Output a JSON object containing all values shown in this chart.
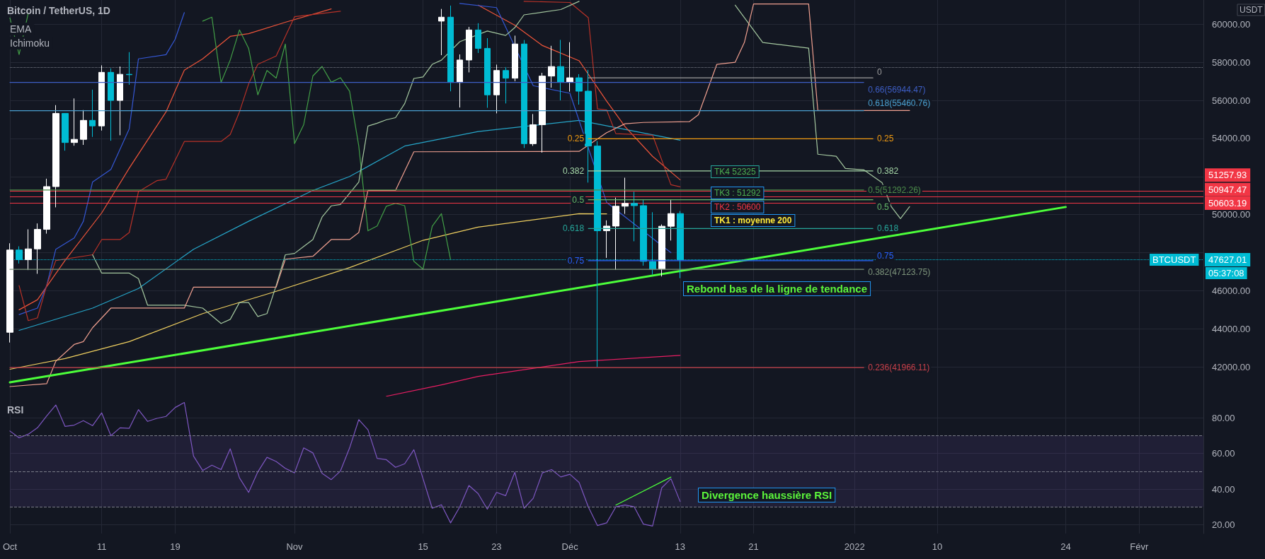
{
  "chart_data": [
    {
      "type": "candlestick",
      "title": "Bitcoin / TetherUS, 1D",
      "ylabel": "USDT",
      "annotations": [
        "EMA",
        "Ichimoku",
        "TK4 52325",
        "TK3 : 51292",
        "TK2 : 50600",
        "TK1 : moyenne 200",
        "Rebond bas de la ligne de tendance",
        "BTCUSDT",
        "05:37:08"
      ],
      "xlim": [
        "2021-10-01",
        "2022-02-08"
      ],
      "xticks": [
        {
          "value": "2021-10-01",
          "label": null
        },
        {
          "value": "2021-10-11",
          "label": null
        },
        {
          "value": "2021-10-19",
          "label": null
        },
        {
          "value": "2021-11-01",
          "label": null
        },
        {
          "value": "2021-11-15",
          "label": null
        },
        {
          "value": "2021-11-23",
          "label": null
        },
        {
          "value": "2021-12-01",
          "label": null
        },
        {
          "value": "2021-12-13",
          "label": null
        },
        {
          "value": "2021-12-21",
          "label": null
        },
        {
          "value": "2022-01-01",
          "label": null
        },
        {
          "value": "2022-01-10",
          "label": null
        },
        {
          "value": "2022-01-24",
          "label": null
        },
        {
          "value": "2022-02-01",
          "label": null
        }
      ],
      "ylim": [
        40450,
        61270
      ],
      "yticks": [
        {
          "value": 42000,
          "label": "42000.00"
        },
        {
          "value": 44000,
          "label": "44000.00"
        },
        {
          "value": 46000,
          "label": "46000.00"
        },
        {
          "value": 48000,
          "label": null
        },
        {
          "value": 50000,
          "label": "50000.00"
        },
        {
          "value": 52000,
          "label": null
        },
        {
          "value": 54000,
          "label": "54000.00"
        },
        {
          "value": 56000,
          "label": "56000.00"
        },
        {
          "value": 58000,
          "label": "58000.00"
        },
        {
          "value": 60000,
          "label": "60000.00"
        }
      ],
      "tick_labels": "y",
      "grid": true,
      "marker": "none",
      "series": [
        {
          "x": [
            "2021-10-01",
            "2021-10-02",
            "2021-10-03",
            "2021-10-04",
            "2021-10-05",
            "2021-10-06",
            "2021-10-07",
            "2021-10-08",
            "2021-10-09",
            "2021-10-10",
            "2021-10-11",
            "2021-10-12",
            "2021-10-13",
            "2021-10-14",
            "2021-11-17",
            "2021-11-18",
            "2021-11-19",
            "2021-11-20",
            "2021-11-21",
            "2021-11-22",
            "2021-11-23",
            "2021-11-24",
            "2021-11-25",
            "2021-11-26",
            "2021-11-27",
            "2021-11-28",
            "2021-11-29",
            "2021-11-30",
            "2021-12-01",
            "2021-12-02",
            "2021-12-03",
            "2021-12-04",
            "2021-12-05",
            "2021-12-06",
            "2021-12-07",
            "2021-12-08",
            "2021-12-09",
            "2021-12-10",
            "2021-12-11",
            "2021-12-12",
            "2021-12-13"
          ],
          "ohlc": [
            [
              43820,
              48495,
              43283,
              48141
            ],
            [
              48141,
              48336,
              47430,
              47634
            ],
            [
              47634,
              49228,
              47088,
              48200
            ],
            [
              48200,
              49536,
              46891,
              49225
            ],
            [
              49225,
              51886,
              49000,
              51471
            ],
            [
              51471,
              55750,
              50382,
              55316
            ],
            [
              55316,
              55332,
              53357,
              53786
            ],
            [
              53786,
              56100,
              53617,
              53951
            ],
            [
              53951,
              55490,
              53661,
              54949
            ],
            [
              54949,
              56561,
              54080,
              54659
            ],
            [
              54659,
              57839,
              54415,
              57471
            ],
            [
              57471,
              57680,
              53879,
              55996
            ],
            [
              55996,
              57777,
              54167,
              57367
            ],
            [
              57367,
              58532,
              56818,
              57347
            ],
            [
              60161,
              60800,
              58373,
              60368
            ],
            [
              60368,
              60977,
              56474,
              56942
            ],
            [
              56942,
              58412,
              55625,
              58119
            ],
            [
              58119,
              59859,
              57469,
              59697
            ],
            [
              59697,
              60052,
              58486,
              58730
            ],
            [
              58730,
              59266,
              55610,
              56289
            ],
            [
              56289,
              57875,
              55317,
              57569
            ],
            [
              57569,
              57750,
              55837,
              57165
            ],
            [
              57165,
              59398,
              57000,
              58960
            ],
            [
              58960,
              59170,
              53500,
              53726
            ],
            [
              53724,
              55280,
              53610,
              54721
            ],
            [
              54721,
              57445,
              53256,
              57275
            ],
            [
              57275,
              58865,
              56666,
              57776
            ],
            [
              57776,
              59176,
              56000,
              56950
            ],
            [
              56950,
              59053,
              56458,
              57185
            ],
            [
              57185,
              57375,
              55777,
              56481
            ],
            [
              56484,
              57600,
              51680,
              53601
            ],
            [
              53601,
              53859,
              42000,
              49152
            ],
            [
              49152,
              49699,
              47727,
              49397
            ],
            [
              49397,
              50891,
              47100,
              50441
            ],
            [
              50441,
              51936,
              50039,
              50588
            ],
            [
              50588,
              51200,
              48600,
              50471
            ],
            [
              50471,
              50797,
              47320,
              47545
            ],
            [
              47535,
              50125,
              46852,
              47140
            ],
            [
              47140,
              49485,
              46751,
              49389
            ],
            [
              49389,
              50797,
              48638,
              50053
            ],
            [
              50053,
              50189,
              46663,
              47627.01
            ]
          ],
          "colors": [
            "#ffffff",
            "#00bcd4",
            "#ffffff",
            "#ffffff",
            "#ffffff",
            "#ffffff",
            "#00bcd4",
            "#ffffff",
            "#ffffff",
            "#00bcd4",
            "#ffffff",
            "#00bcd4",
            "#ffffff",
            "#00bcd4",
            "#ffffff",
            "#00bcd4",
            "#ffffff",
            "#ffffff",
            "#00bcd4",
            "#00bcd4",
            "#ffffff",
            "#00bcd4",
            "#ffffff",
            "#00bcd4",
            "#ffffff",
            "#ffffff",
            "#ffffff",
            "#00bcd4",
            "#ffffff",
            "#00bcd4",
            "#00bcd4",
            "#00bcd4",
            "#ffffff",
            "#ffffff",
            "#ffffff",
            "#00bcd4",
            "#00bcd4",
            "#00bcd4",
            "#ffffff",
            "#ffffff",
            "#00bcd4"
          ]
        },
        {
          "type": "line",
          "color": "#f0d060",
          "x": [
            "2021-10-01",
            "2021-10-07",
            "2021-10-14",
            "2021-10-22",
            "2021-10-30",
            "2021-11-07",
            "2021-11-15",
            "2021-11-21",
            "2021-12-02",
            "2021-12-05"
          ],
          "values": [
            41880,
            42440,
            43330,
            44800,
            45970,
            47220,
            48650,
            49340,
            50050,
            50040
          ]
        },
        {
          "type": "line",
          "color": "#26a6c9",
          "x": [
            "2021-10-02",
            "2021-10-10",
            "2021-10-15",
            "2021-10-21",
            "2021-10-27",
            "2021-11-03",
            "2021-11-07",
            "2021-11-13",
            "2021-11-21",
            "2021-12-02",
            "2021-12-13"
          ],
          "values": [
            43920,
            45090,
            46120,
            48180,
            49650,
            51270,
            52000,
            53600,
            54360,
            54950,
            53910
          ]
        },
        {
          "type": "line",
          "color": "#f0553a",
          "x": [
            "2021-10-02",
            "2021-10-04",
            "2021-10-07",
            "2021-10-11",
            "2021-10-14",
            "2021-10-18",
            "2021-10-20",
            "2021-10-22",
            "2021-10-25",
            "2021-10-27",
            "2021-10-31",
            "2021-11-05",
            "2021-11-12",
            "2021-11-21",
            "2021-11-25",
            "2021-11-28",
            "2021-12-02",
            "2021-12-05",
            "2021-12-07",
            "2021-12-10",
            "2021-12-13"
          ],
          "values": [
            45000,
            45530,
            47590,
            50090,
            52440,
            55390,
            57590,
            58180,
            59360,
            59500,
            60100,
            60800,
            null,
            61000,
            59940,
            58880,
            58080,
            55960,
            54620,
            53060,
            51830
          ]
        },
        {
          "type": "line",
          "color": "#3558d6",
          "x": [
            "2021-10-02",
            "2021-10-04",
            "2021-10-05",
            "2021-10-06",
            "2021-10-08",
            "2021-10-09",
            "2021-10-10",
            "2021-10-12",
            "2021-10-14",
            "2021-10-15",
            "2021-10-18",
            "2021-10-19",
            "2021-10-20",
            "2021-10-31",
            "2021-11-19",
            "2021-11-23",
            "2021-11-27",
            "2021-12-01",
            "2021-12-05",
            "2021-12-12"
          ],
          "values": [
            44750,
            45090,
            46270,
            48180,
            48770,
            49650,
            51710,
            52370,
            54510,
            58180,
            58400,
            59210,
            60610,
            null,
            61090,
            60870,
            56770,
            56370,
            50640,
            48000
          ]
        },
        {
          "type": "line",
          "color": "#b83228",
          "x": [
            "2021-10-02",
            "2021-10-03",
            "2021-10-04",
            "2021-10-05",
            "2021-10-06",
            "2021-10-10",
            "2021-10-11",
            "2021-10-13",
            "2021-10-14",
            "2021-10-15",
            "2021-10-17",
            "2021-10-18",
            "2021-10-20",
            "2021-10-24",
            "2021-10-25",
            "2021-10-26",
            "2021-10-27",
            "2021-10-28",
            "2021-10-30",
            "2021-10-31",
            "2021-11-01",
            "2021-11-06",
            "2021-11-15",
            "2021-11-26",
            "2021-12-01",
            "2021-12-03",
            "2021-12-04",
            "2021-12-05",
            "2021-12-06",
            "2021-12-10",
            "2021-12-12",
            "2021-12-13"
          ],
          "values": [
            46270,
            44430,
            44580,
            46270,
            47590,
            47890,
            48690,
            48690,
            49060,
            51200,
            51780,
            51860,
            53840,
            53840,
            54210,
            55390,
            56860,
            57890,
            58330,
            59360,
            60390,
            60680,
            null,
            61200,
            61140,
            60340,
            55550,
            55500,
            54250,
            54170,
            51570,
            51460
          ]
        },
        {
          "type": "line",
          "color": "#43a047",
          "x": [
            "2021-10-01",
            "2021-10-02",
            "2021-10-03",
            "2021-10-04",
            "2021-10-22",
            "2021-10-23",
            "2021-10-24",
            "2021-10-25",
            "2021-10-26",
            "2021-10-27",
            "2021-10-28",
            "2021-10-29",
            "2021-10-30",
            "2021-10-31",
            "2021-11-01",
            "2021-11-02",
            "2021-11-03",
            "2021-11-04",
            "2021-11-05",
            "2021-11-06",
            "2021-11-07",
            "2021-11-08",
            "2021-11-09",
            "2021-11-10",
            "2021-11-11",
            "2021-11-12",
            "2021-11-13",
            "2021-11-14",
            "2021-11-15",
            "2021-11-16",
            "2021-11-17",
            "2021-11-18"
          ],
          "values": [
            60330,
            58410,
            60580,
            null,
            60160,
            60370,
            56940,
            58120,
            59700,
            58730,
            56290,
            57570,
            57170,
            58960,
            53730,
            54720,
            57280,
            57780,
            56950,
            57190,
            56480,
            53600,
            49150,
            49400,
            50440,
            50590,
            50470,
            47550,
            47140,
            49390,
            50050,
            47630
          ]
        },
        {
          "type": "line",
          "color": "#a5c8a0",
          "x": [
            "2021-10-10",
            "2021-10-11",
            "2021-10-14",
            "2021-10-15",
            "2021-10-16",
            "2021-10-20",
            "2021-10-22",
            "2021-10-24",
            "2021-10-25",
            "2021-10-26",
            "2021-10-27",
            "2021-10-28",
            "2021-10-29",
            "2021-10-30",
            "2021-10-31",
            "2021-11-01",
            "2021-11-02",
            "2021-11-03",
            "2021-11-04",
            "2021-11-05",
            "2021-11-06",
            "2021-11-08",
            "2021-11-09",
            "2021-11-10",
            "2021-11-11",
            "2021-11-12",
            "2021-11-13",
            "2021-11-14",
            "2021-11-15",
            "2021-11-16",
            "2021-11-17",
            "2021-11-19",
            "2021-11-22",
            "2021-11-24",
            "2021-11-25",
            "2021-11-26",
            "2021-11-30",
            "2021-12-02",
            "2021-12-10",
            "2021-12-19",
            "2021-12-22",
            "2021-12-27",
            "2021-12-28",
            "2021-12-30",
            "2021-12-31",
            "2022-01-02",
            "2022-01-04",
            "2022-01-05",
            "2022-01-06",
            "2022-01-07"
          ],
          "values": [
            47890,
            46930,
            46930,
            46640,
            45240,
            45240,
            45090,
            44280,
            44500,
            45380,
            45380,
            44650,
            44800,
            46270,
            47890,
            47960,
            48330,
            48690,
            49870,
            50460,
            50530,
            51710,
            54650,
            54800,
            54980,
            55090,
            55830,
            57150,
            57230,
            57890,
            58110,
            59080,
            59640,
            59410,
            59820,
            60490,
            60770,
            61200,
            null,
            61000,
            59040,
            58740,
            53170,
            53060,
            52420,
            52350,
            51680,
            50420,
            49790,
            50420
          ]
        },
        {
          "type": "line",
          "color": "#f0a090",
          "x": [
            "2021-10-01",
            "2021-10-05",
            "2021-10-06",
            "2021-10-08",
            "2021-10-09",
            "2021-10-10",
            "2021-10-12",
            "2021-10-20",
            "2021-10-21",
            "2021-10-30",
            "2021-10-31",
            "2021-11-03",
            "2021-11-05",
            "2021-11-07",
            "2021-11-08",
            "2021-11-09",
            "2021-11-12",
            "2021-11-14",
            "2021-12-02",
            "2021-12-05",
            "2021-12-07",
            "2021-12-09",
            "2021-12-14",
            "2021-12-15",
            "2021-12-17",
            "2021-12-19",
            "2021-12-20",
            "2021-12-21",
            "2021-12-27",
            "2021-12-28",
            "2022-01-07"
          ],
          "values": [
            40970,
            41120,
            42300,
            43180,
            43330,
            44060,
            45090,
            45090,
            46190,
            46190,
            47660,
            47810,
            48690,
            48690,
            49060,
            51270,
            51270,
            53300,
            53320,
            54300,
            54770,
            54840,
            54880,
            55250,
            57890,
            58000,
            59040,
            61060,
            61060,
            55470,
            55470
          ]
        },
        {
          "type": "line",
          "color": "#e91e63",
          "x": [
            "2021-11-11",
            "2021-11-17",
            "2021-11-21",
            "2021-12-02",
            "2021-12-13"
          ],
          "values": [
            40460,
            41060,
            41500,
            42280,
            42610
          ]
        },
        {
          "type": "line",
          "color": "#4cff3a",
          "x": [
            "2021-10-01",
            "2022-01-24"
          ],
          "values": [
            41190,
            50400
          ]
        },
        {
          "type": "line",
          "name": "0.66(56944.47)",
          "color": "#3d5dc4",
          "x": [
            "2021-10-01",
            "2022-01-02"
          ],
          "values": [
            56944.47,
            56944.47
          ]
        },
        {
          "type": "line",
          "name": "0.618(55460.76)",
          "color": "#4aa0d0",
          "x": [
            "2021-10-01",
            "2022-01-02"
          ],
          "values": [
            55460.76,
            55460.76
          ]
        },
        {
          "type": "line",
          "name": "0.5(51292.26)",
          "color": "#4c8c4a",
          "x": [
            "2021-10-01",
            "2022-01-02"
          ],
          "values": [
            51292.26,
            51292.26
          ]
        },
        {
          "type": "line",
          "name": "0.382(47123.75)",
          "color": "#7d947b",
          "x": [
            "2021-10-01",
            "2022-01-02"
          ],
          "values": [
            47123.75,
            47123.75
          ]
        },
        {
          "type": "line",
          "name": "0.236(41966.11)",
          "color": "#c8404a",
          "x": [
            "2021-10-01",
            "2022-01-02"
          ],
          "values": [
            41966.11,
            41966.11
          ]
        },
        {
          "type": "line",
          "name": "0",
          "color": "#9e9e9e",
          "x": [
            "2021-12-03",
            "2022-01-03"
          ],
          "values": [
            57180,
            57180
          ]
        },
        {
          "type": "line",
          "name": "0.25",
          "color": "#f39c12",
          "x": [
            "2021-12-03",
            "2022-01-03"
          ],
          "values": [
            53980,
            53980
          ]
        },
        {
          "type": "line",
          "name": "0.382",
          "color": "#a5d6a7",
          "x": [
            "2021-12-03",
            "2022-01-03"
          ],
          "values": [
            52290,
            52290
          ]
        },
        {
          "type": "line",
          "name": "0.5",
          "color": "#66bb6a",
          "x": [
            "2021-12-03",
            "2022-01-03"
          ],
          "values": [
            50780,
            50780
          ]
        },
        {
          "type": "line",
          "name": "0.618",
          "color": "#26a69a",
          "x": [
            "2021-12-03",
            "2022-01-03"
          ],
          "values": [
            49270,
            49270
          ]
        },
        {
          "type": "line",
          "name": "0.75",
          "color": "#2962ff",
          "x": [
            "2021-12-03",
            "2022-01-03"
          ],
          "values": [
            47580,
            47580
          ]
        }
      ],
      "ref_lines": [
        {
          "axis": "y",
          "value": 57740,
          "color": "#787b86",
          "line_style": "dotted"
        },
        {
          "axis": "y",
          "value": 51257.93,
          "label": "51257.93",
          "color": "#f23645"
        },
        {
          "axis": "y",
          "value": 50947.47,
          "label": "50947.47",
          "color": "#f23645"
        },
        {
          "axis": "y",
          "value": 50603.19,
          "label": "50603.19",
          "color": "#f23645"
        },
        {
          "axis": "y",
          "value": 47627.01,
          "label": "47627.01",
          "color": "#00bcd4",
          "line_style": "dotted"
        }
      ]
    },
    {
      "type": "line",
      "title": "RSI",
      "annotations": [
        "Divergence haussière RSI"
      ],
      "xlim": [
        "2021-10-01",
        "2022-02-08"
      ],
      "xticks": [
        {
          "value": "2021-10-01",
          "label": "Oct"
        },
        {
          "value": "2021-10-11",
          "label": "11"
        },
        {
          "value": "2021-10-19",
          "label": "19"
        },
        {
          "value": "2021-11-01",
          "label": "Nov"
        },
        {
          "value": "2021-11-15",
          "label": "15"
        },
        {
          "value": "2021-11-23",
          "label": "23"
        },
        {
          "value": "2021-12-01",
          "label": "Déc"
        },
        {
          "value": "2021-12-13",
          "label": "13"
        },
        {
          "value": "2021-12-21",
          "label": "21"
        },
        {
          "value": "2022-01-01",
          "label": "2022"
        },
        {
          "value": "2022-01-10",
          "label": "10"
        },
        {
          "value": "2022-01-24",
          "label": "24"
        },
        {
          "value": "2022-02-01",
          "label": "Févr"
        }
      ],
      "ylim": [
        15,
        92
      ],
      "yticks": [
        {
          "value": 20,
          "label": "20.00"
        },
        {
          "value": 40,
          "label": "40.00"
        },
        {
          "value": 60,
          "label": "60.00"
        },
        {
          "value": 80,
          "label": "80.00"
        }
      ],
      "grid": true,
      "marker": "none",
      "series": [
        {
          "color": "#7e57c2",
          "x": [
            "2021-10-01",
            "2021-10-02",
            "2021-10-03",
            "2021-10-04",
            "2021-10-05",
            "2021-10-06",
            "2021-10-07",
            "2021-10-08",
            "2021-10-09",
            "2021-10-10",
            "2021-10-11",
            "2021-10-12",
            "2021-10-13",
            "2021-10-14",
            "2021-10-15",
            "2021-10-16",
            "2021-10-17",
            "2021-10-18",
            "2021-10-19",
            "2021-10-20",
            "2021-10-21",
            "2021-10-22",
            "2021-10-23",
            "2021-10-24",
            "2021-10-25",
            "2021-10-26",
            "2021-10-27",
            "2021-10-28",
            "2021-10-29",
            "2021-10-30",
            "2021-10-31",
            "2021-11-01",
            "2021-11-02",
            "2021-11-03",
            "2021-11-04",
            "2021-11-05",
            "2021-11-06",
            "2021-11-07",
            "2021-11-08",
            "2021-11-09",
            "2021-11-10",
            "2021-11-11",
            "2021-11-12",
            "2021-11-13",
            "2021-11-14",
            "2021-11-15",
            "2021-11-16",
            "2021-11-17",
            "2021-11-18",
            "2021-11-19",
            "2021-11-20",
            "2021-11-21",
            "2021-11-22",
            "2021-11-23",
            "2021-11-24",
            "2021-11-25",
            "2021-11-26",
            "2021-11-27",
            "2021-11-28",
            "2021-11-29",
            "2021-11-30",
            "2021-12-01",
            "2021-12-02",
            "2021-12-03",
            "2021-12-04",
            "2021-12-05",
            "2021-12-06",
            "2021-12-07",
            "2021-12-08",
            "2021-12-09",
            "2021-12-10",
            "2021-12-11",
            "2021-12-12",
            "2021-12-13"
          ],
          "values": [
            72.6,
            68.8,
            70.8,
            74.4,
            81,
            87.2,
            75.2,
            75.9,
            78.4,
            75.6,
            82.8,
            70,
            74.4,
            74.1,
            84.6,
            78,
            79.7,
            80.8,
            85.8,
            88.6,
            58.5,
            50.4,
            53.4,
            50.9,
            62.6,
            46.3,
            38.1,
            49.6,
            57.8,
            55.5,
            51.6,
            49.1,
            63.1,
            60.3,
            48.8,
            45.3,
            50.1,
            63.1,
            79,
            73.3,
            57.2,
            56.5,
            52.2,
            54.2,
            62.1,
            45.8,
            29.2,
            31.2,
            21,
            30,
            42,
            37.4,
            28.7,
            38.1,
            36.3,
            49.4,
            29.2,
            34.8,
            49.1,
            50.9,
            46.8,
            48.3,
            43.7,
            30,
            19.5,
            21,
            30,
            31,
            30,
            20.3,
            19.2,
            40.7,
            45.8,
            33
          ]
        },
        {
          "color": "#4cff3a",
          "x": [
            "2021-12-06",
            "2021-12-12"
          ],
          "values": [
            31,
            46.7
          ]
        }
      ],
      "ref_lines": [
        {
          "axis": "y",
          "value": 70,
          "color": "#787b86",
          "line_style": "dashed"
        },
        {
          "axis": "y",
          "value": 50,
          "color": "#787b86",
          "line_style": "dashed"
        },
        {
          "axis": "y",
          "value": 30,
          "color": "#787b86",
          "line_style": "dashed"
        }
      ],
      "bands": [
        {
          "axis": "y",
          "from": 30,
          "to": 70,
          "color": "#7e57c2"
        }
      ]
    }
  ]
}
